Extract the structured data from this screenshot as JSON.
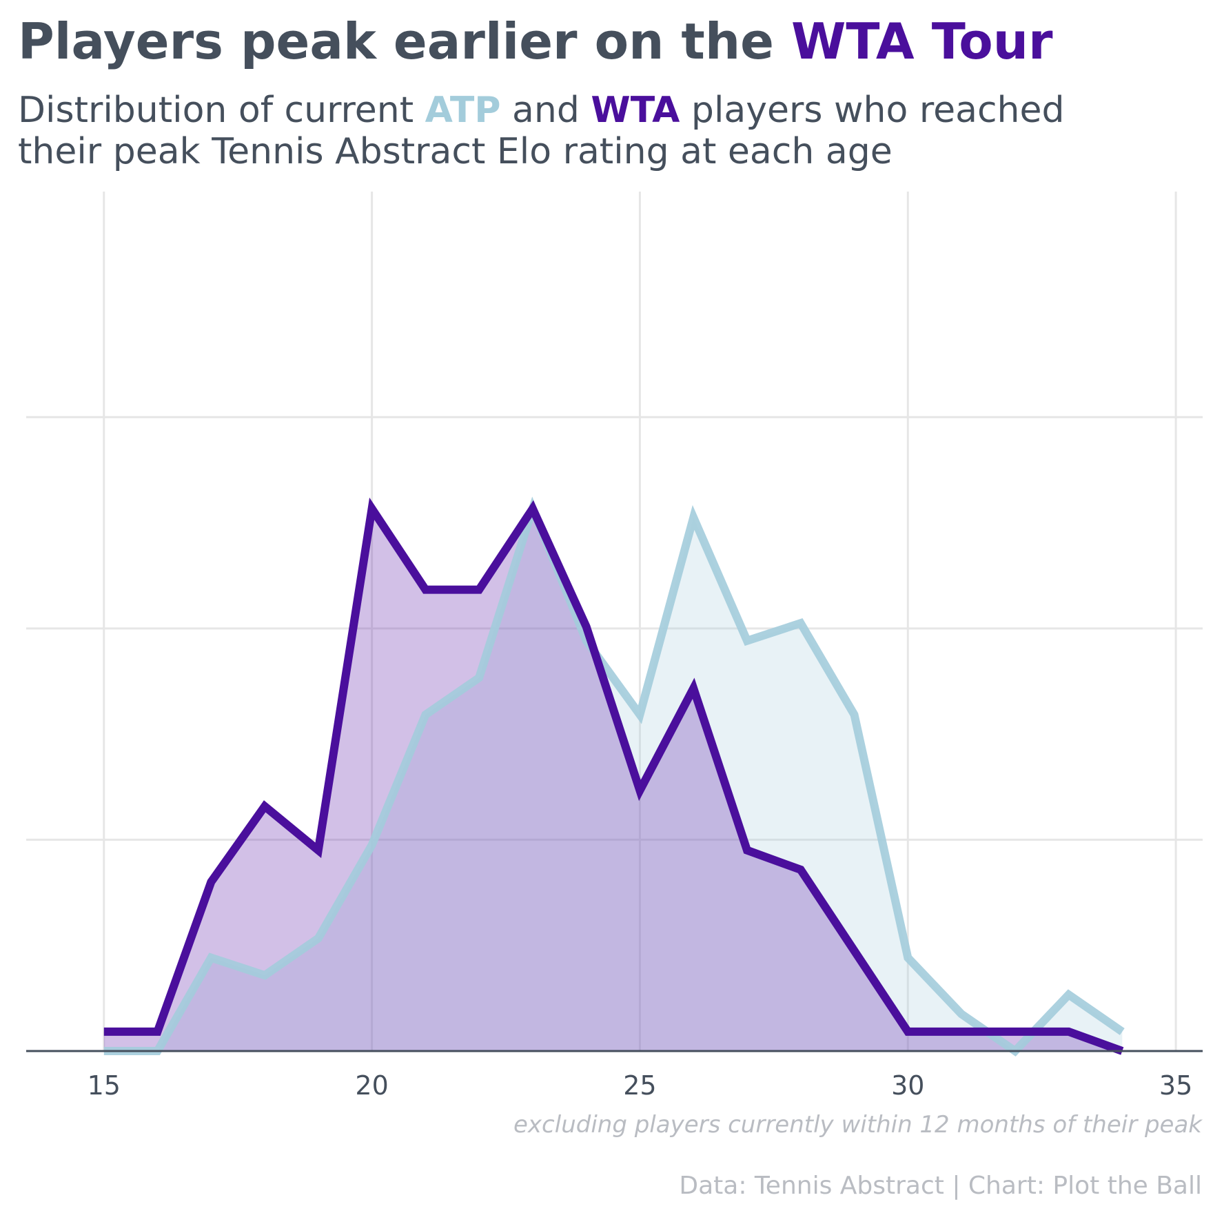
{
  "title": {
    "prefix": "Players peak earlier on the ",
    "highlight": "WTA Tour"
  },
  "subtitle": {
    "line1_a": "Distribution of current ",
    "atp": "ATP",
    "line1_b": " and ",
    "wta": "WTA",
    "line1_c": " players who reached",
    "line2": "their peak Tennis Abstract Elo rating at each age"
  },
  "note": "excluding players currently within 12 months of their peak",
  "credit": "Data: Tennis Abstract | Chart: Plot the Ball",
  "colors": {
    "atp": "#a3ccdb",
    "wta": "#4a0f9c",
    "text": "#454f5c",
    "grid": "#e6e6e6"
  },
  "chart_data": {
    "type": "area",
    "x": [
      15,
      16,
      17,
      18,
      19,
      20,
      21,
      22,
      23,
      24,
      25,
      26,
      27,
      28,
      29,
      30,
      31,
      32,
      33,
      34
    ],
    "series": [
      {
        "name": "ATP",
        "color": "#a3ccdb",
        "values": [
          0,
          0,
          0.53,
          0.43,
          0.64,
          1.17,
          1.91,
          2.12,
          3.08,
          2.33,
          1.91,
          3.03,
          2.33,
          2.43,
          1.91,
          0.53,
          0.21,
          0,
          0.32,
          0.11
        ]
      },
      {
        "name": "WTA",
        "color": "#4a0f9c",
        "values": [
          0.11,
          0.11,
          0.96,
          1.39,
          1.14,
          3.08,
          2.62,
          2.62,
          3.08,
          2.41,
          1.48,
          2.06,
          1.14,
          1.03,
          0.57,
          0.11,
          0.11,
          0.11,
          0.11,
          0
        ]
      }
    ],
    "xticks": [
      15,
      20,
      25,
      30,
      35
    ],
    "xlim": [
      13.55,
      35.5
    ],
    "ylim": [
      0,
      4.65
    ],
    "yticks_gridlines": [
      0,
      1.2,
      2.4,
      3.6,
      4.8
    ],
    "grid": true,
    "y_tick_labels_shown": false
  }
}
